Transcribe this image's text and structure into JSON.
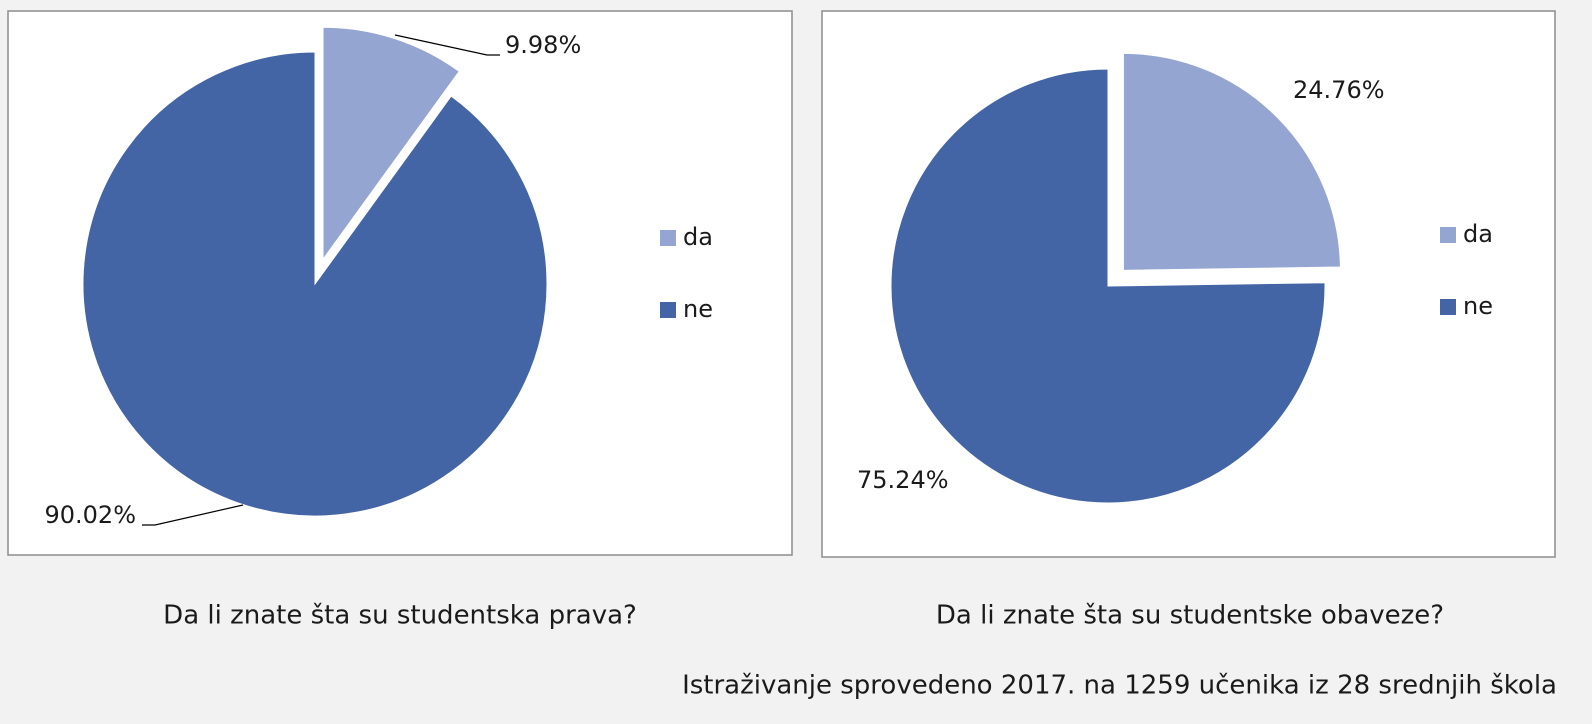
{
  "chart_data": [
    {
      "type": "pie",
      "title": "Da li znate šta su studentska prava?",
      "categories": [
        "da",
        "ne"
      ],
      "values": [
        9.98,
        90.02
      ],
      "value_labels": [
        "9.98%",
        "90.02%"
      ],
      "colors": [
        "#95a5d2",
        "#4364a5"
      ],
      "legend": "right"
    },
    {
      "type": "pie",
      "title": "Da li znate šta su studentske obaveze?",
      "categories": [
        "da",
        "ne"
      ],
      "values": [
        24.76,
        75.24
      ],
      "value_labels": [
        "24.76%",
        "75.24%"
      ],
      "colors": [
        "#95a5d2",
        "#4364a5"
      ],
      "legend": "right"
    }
  ],
  "footer": "Istraživanje sprovedeno 2017. na 1259 učenika iz 28 srednjih škola"
}
